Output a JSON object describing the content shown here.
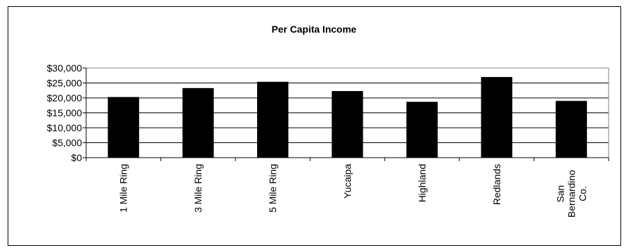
{
  "chart_data": {
    "type": "bar",
    "title": "Per Capita Income",
    "categories": [
      "1 Mile Ring",
      "3 Mile Ring",
      "5 Mile Ring",
      "Yucaipa",
      "Highland",
      "Redlands",
      "San Bernardino Co."
    ],
    "category_lines": [
      [
        "1 Mile Ring"
      ],
      [
        "3 Mile Ring"
      ],
      [
        "5 Mile Ring"
      ],
      [
        "Yucaipa"
      ],
      [
        "Highland"
      ],
      [
        "Redlands"
      ],
      [
        "San",
        "Bernardino",
        "Co."
      ]
    ],
    "values": [
      20300,
      23300,
      25400,
      22300,
      18700,
      27000,
      19000
    ],
    "y_ticks": [
      0,
      5000,
      10000,
      15000,
      20000,
      25000,
      30000
    ],
    "y_tick_labels": [
      "$0",
      "$5,000",
      "$10,000",
      "$15,000",
      "$20,000",
      "$25,000",
      "$30,000"
    ],
    "ylim": [
      0,
      30000
    ],
    "xlabel": "",
    "ylabel": "",
    "grid": true,
    "legend": "none",
    "bar_color": "#000000",
    "grid_color": "#000000",
    "plot_border_color": "#808080"
  }
}
